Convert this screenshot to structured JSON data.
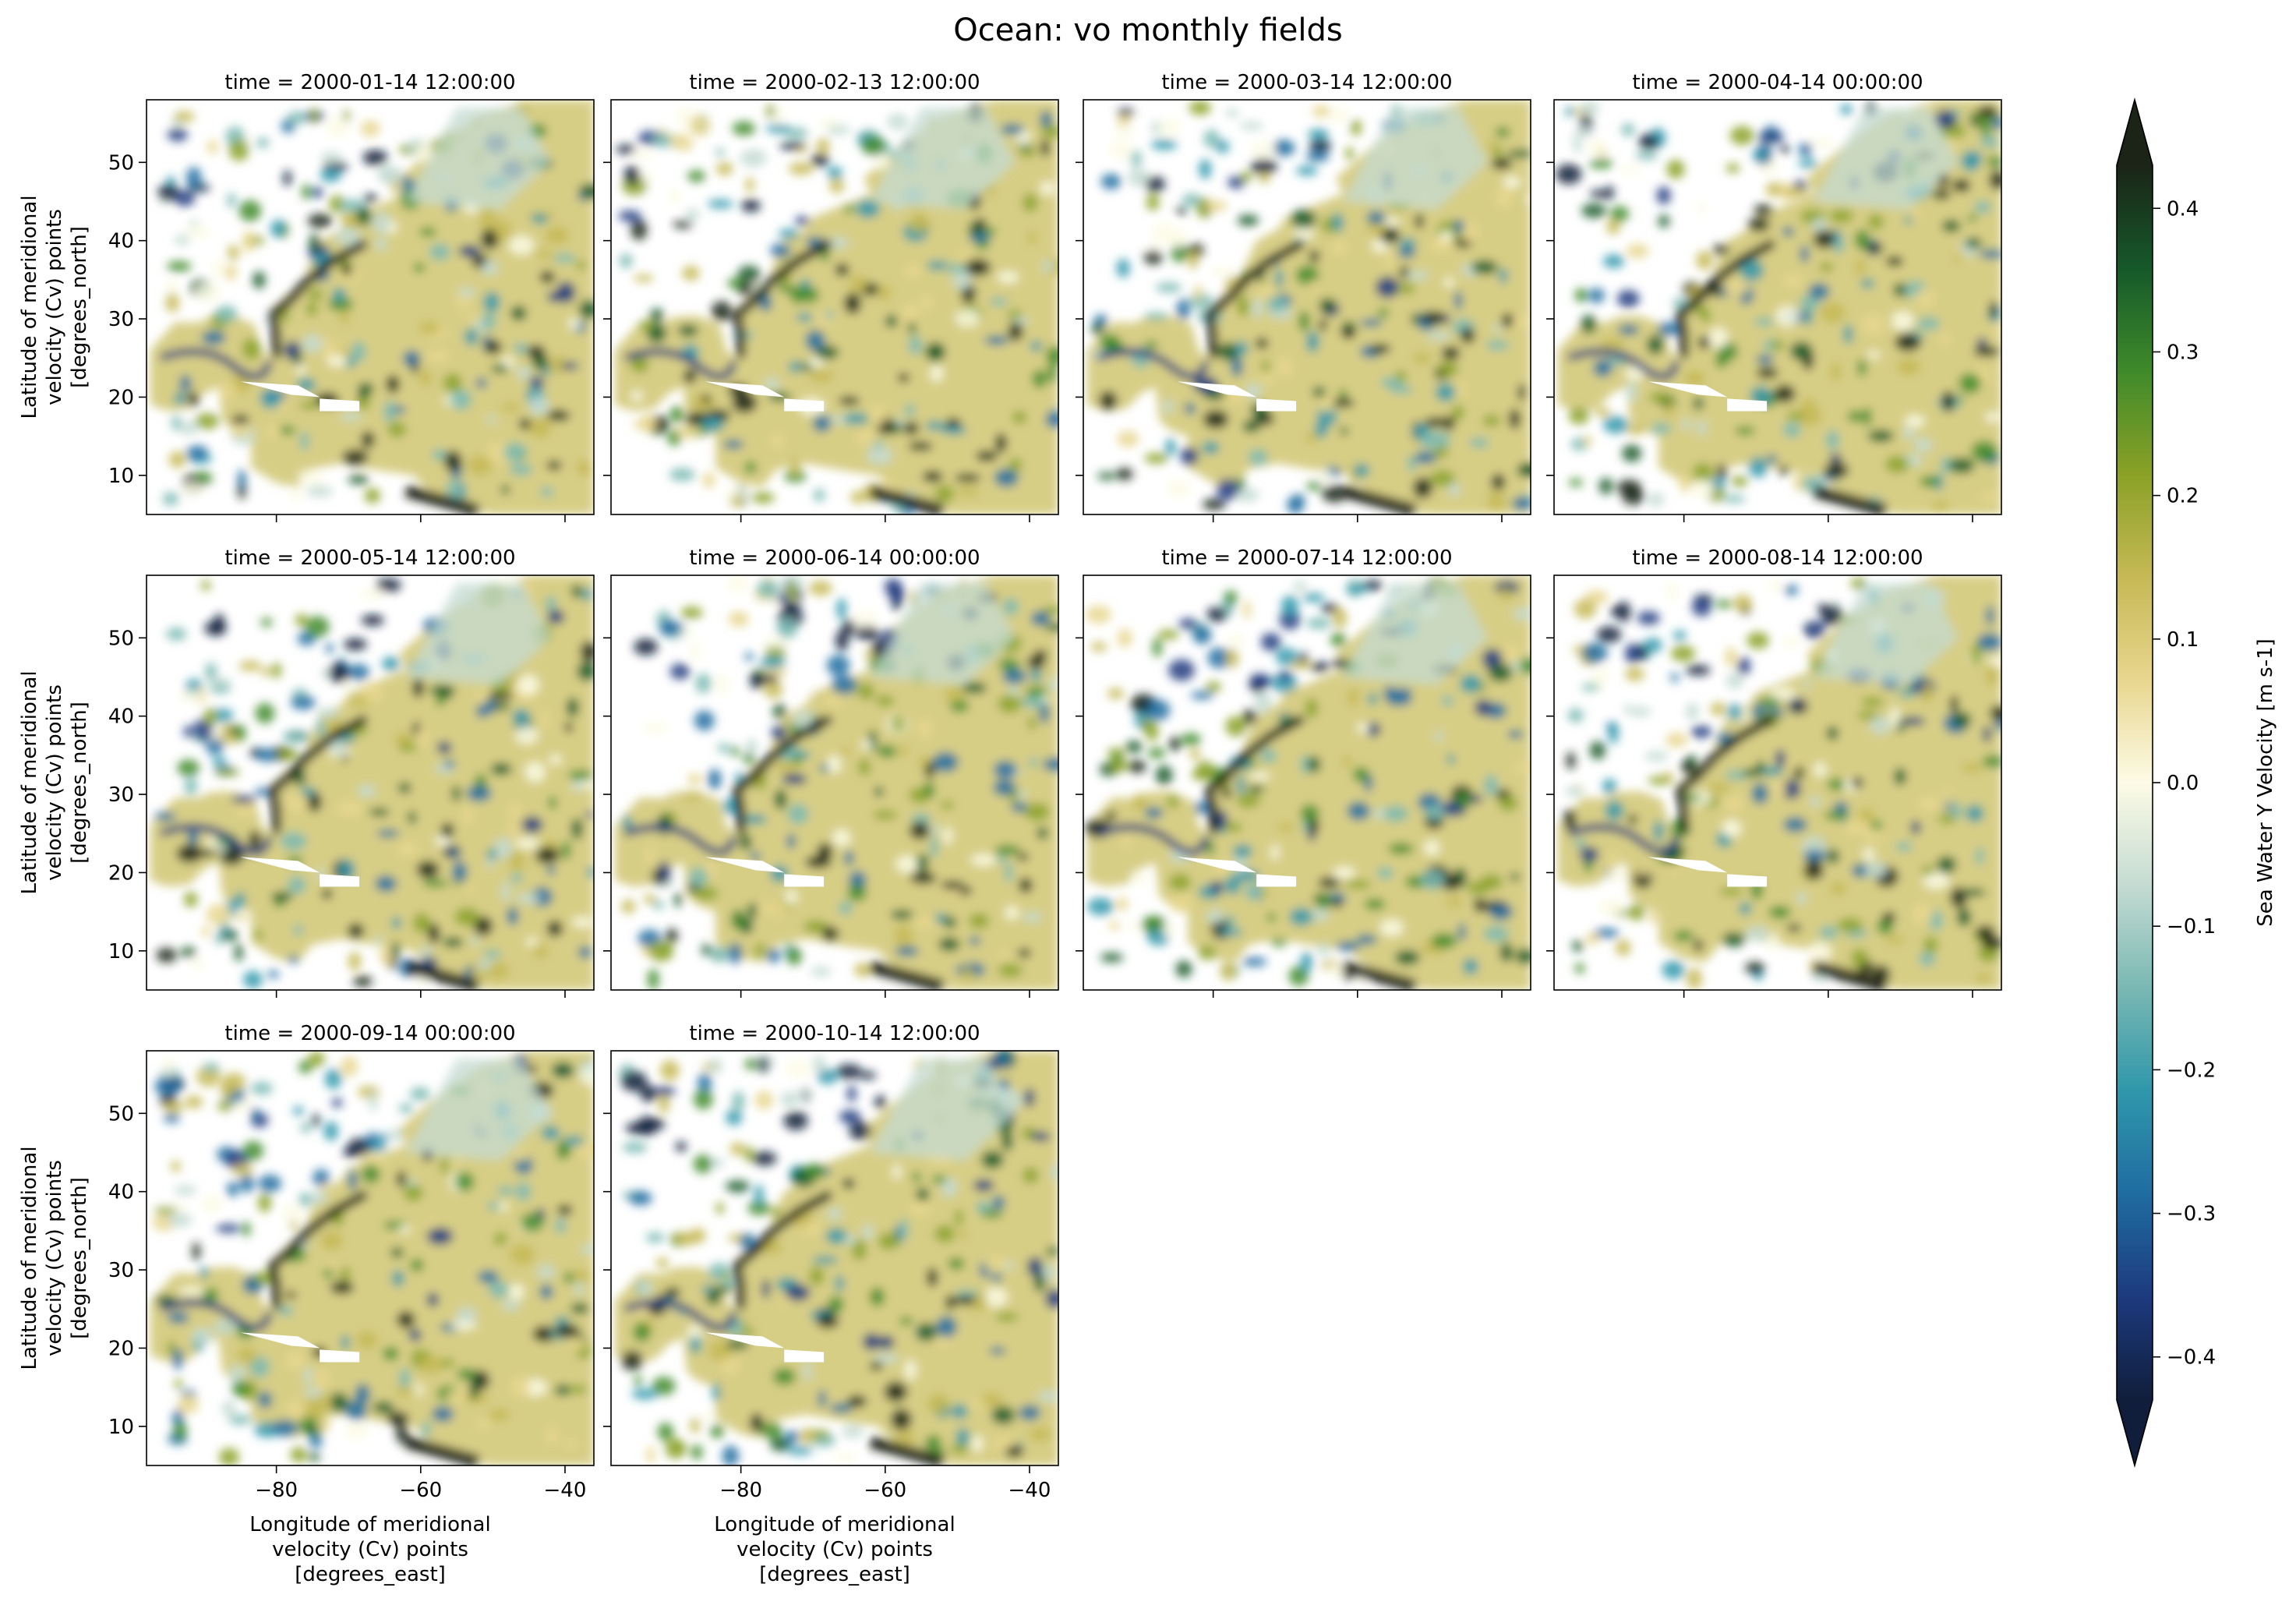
{
  "figure": {
    "title": "Ocean: vo monthly fields"
  },
  "chart_data": {
    "type": "heatmap",
    "title": "Ocean: vo monthly fields",
    "variable": "vo",
    "panels": [
      {
        "title": "time = 2000-01-14 12:00:00",
        "time": "2000-01-14 12:00:00"
      },
      {
        "title": "time = 2000-02-13 12:00:00",
        "time": "2000-02-13 12:00:00"
      },
      {
        "title": "time = 2000-03-14 12:00:00",
        "time": "2000-03-14 12:00:00"
      },
      {
        "title": "time = 2000-04-14 00:00:00",
        "time": "2000-04-14 00:00:00"
      },
      {
        "title": "time = 2000-05-14 12:00:00",
        "time": "2000-05-14 12:00:00"
      },
      {
        "title": "time = 2000-06-14 00:00:00",
        "time": "2000-06-14 00:00:00"
      },
      {
        "title": "time = 2000-07-14 12:00:00",
        "time": "2000-07-14 12:00:00"
      },
      {
        "title": "time = 2000-08-14 12:00:00",
        "time": "2000-08-14 12:00:00"
      },
      {
        "title": "time = 2000-09-14 00:00:00",
        "time": "2000-09-14 00:00:00"
      },
      {
        "title": "time = 2000-10-14 12:00:00",
        "time": "2000-10-14 12:00:00"
      }
    ],
    "x_axis": {
      "label_lines": [
        "Longitude of meridional",
        "velocity (Cv) points",
        "[degrees_east]"
      ],
      "ticks": [
        -80,
        -60,
        -40
      ],
      "tick_labels": [
        "−80",
        "−60",
        "−40"
      ],
      "range": [
        -98,
        -36
      ]
    },
    "y_axis": {
      "label_lines": [
        "Latitude of meridional",
        "velocity (Cv) points",
        "[degrees_north]"
      ],
      "ticks": [
        10,
        20,
        30,
        40,
        50
      ],
      "tick_labels": [
        "10",
        "20",
        "30",
        "40",
        "50"
      ],
      "range": [
        5,
        58
      ]
    },
    "colorbar": {
      "label": "Sea Water Y Velocity [m s-1]",
      "range": [
        -0.43,
        0.43
      ],
      "extend": "both",
      "ticks": [
        -0.4,
        -0.3,
        -0.2,
        -0.1,
        0.0,
        0.1,
        0.2,
        0.3,
        0.4
      ],
      "tick_labels": [
        "−0.4",
        "−0.3",
        "−0.2",
        "−0.1",
        "0.0",
        "0.1",
        "0.2",
        "0.3",
        "0.4"
      ],
      "colormap": [
        "#101e3b",
        "#1d3a7e",
        "#1f6ca1",
        "#2f97ab",
        "#79b8b3",
        "#c4dbd2",
        "#fdfbe6",
        "#e8d68e",
        "#c6b955",
        "#8aa126",
        "#3f8a2a",
        "#15592a",
        "#1b2417"
      ]
    },
    "grid": false
  }
}
